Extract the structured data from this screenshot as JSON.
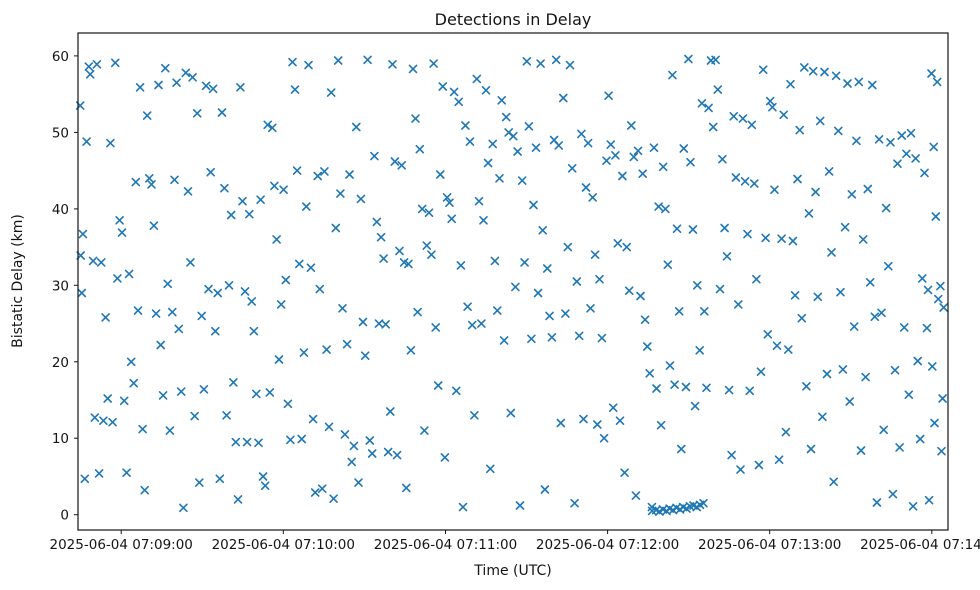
{
  "chart_data": {
    "type": "scatter",
    "title": "Detections in Delay",
    "xlabel": "Time (UTC)",
    "ylabel": "Bistatic Delay (km)",
    "marker": "x",
    "marker_color": "#1f77b4",
    "grid": false,
    "legend": "none",
    "x_tick_labels": [
      "2025-06-04 07:09:00",
      "2025-06-04 07:10:00",
      "2025-06-04 07:11:00",
      "2025-06-04 07:12:00",
      "2025-06-04 07:13:00",
      "2025-06-04 07:14:00"
    ],
    "x_tick_seconds": [
      0,
      60,
      120,
      180,
      240,
      300
    ],
    "xlim_seconds": [
      -16,
      306
    ],
    "y_ticks": [
      0,
      10,
      20,
      30,
      40,
      50,
      60
    ],
    "ylim": [
      -2,
      63
    ],
    "points": [
      [
        -15.2,
        53.5
      ],
      [
        -15.0,
        33.9
      ],
      [
        -14.6,
        29.0
      ],
      [
        -14.2,
        36.7
      ],
      [
        -13.5,
        4.7
      ],
      [
        -12.8,
        48.8
      ],
      [
        -12.0,
        58.6
      ],
      [
        -11.5,
        57.6
      ],
      [
        -10.4,
        33.2
      ],
      [
        -9.8,
        12.7
      ],
      [
        -9.0,
        58.9
      ],
      [
        -8.2,
        5.4
      ],
      [
        -7.4,
        33.0
      ],
      [
        -6.6,
        12.3
      ],
      [
        -5.8,
        25.8
      ],
      [
        -5.0,
        15.2
      ],
      [
        -4.0,
        48.6
      ],
      [
        -3.2,
        12.1
      ],
      [
        -2.2,
        59.1
      ],
      [
        -1.4,
        30.9
      ],
      [
        -0.6,
        38.5
      ],
      [
        0.3,
        36.9
      ],
      [
        1.1,
        14.9
      ],
      [
        2.0,
        5.5
      ],
      [
        2.9,
        31.5
      ],
      [
        3.7,
        20.0
      ],
      [
        4.6,
        17.2
      ],
      [
        5.4,
        43.5
      ],
      [
        6.2,
        26.7
      ],
      [
        7.0,
        55.9
      ],
      [
        7.9,
        11.2
      ],
      [
        8.7,
        3.2
      ],
      [
        9.6,
        52.2
      ],
      [
        10.4,
        44.0
      ],
      [
        11.2,
        43.2
      ],
      [
        12.1,
        37.8
      ],
      [
        12.9,
        26.3
      ],
      [
        13.8,
        56.2
      ],
      [
        14.6,
        22.2
      ],
      [
        15.5,
        15.6
      ],
      [
        16.3,
        58.4
      ],
      [
        17.2,
        30.2
      ],
      [
        18.0,
        11.0
      ],
      [
        18.9,
        26.5
      ],
      [
        19.7,
        43.8
      ],
      [
        20.5,
        56.5
      ],
      [
        21.3,
        24.3
      ],
      [
        22.2,
        16.1
      ],
      [
        23.0,
        0.9
      ],
      [
        23.9,
        57.8
      ],
      [
        24.7,
        42.3
      ],
      [
        25.6,
        33.0
      ],
      [
        26.4,
        57.2
      ],
      [
        27.2,
        12.9
      ],
      [
        28.1,
        52.5
      ],
      [
        28.9,
        4.2
      ],
      [
        29.8,
        26.0
      ],
      [
        30.6,
        16.4
      ],
      [
        31.4,
        56.1
      ],
      [
        32.3,
        29.5
      ],
      [
        33.1,
        44.8
      ],
      [
        34.0,
        55.7
      ],
      [
        34.8,
        24.0
      ],
      [
        35.7,
        29.0
      ],
      [
        36.5,
        4.7
      ],
      [
        37.3,
        52.6
      ],
      [
        38.2,
        42.7
      ],
      [
        39.0,
        13.0
      ],
      [
        39.9,
        30.0
      ],
      [
        40.7,
        39.2
      ],
      [
        41.5,
        17.3
      ],
      [
        42.4,
        9.5
      ],
      [
        43.2,
        2.0
      ],
      [
        44.1,
        55.9
      ],
      [
        44.9,
        41.0
      ],
      [
        45.8,
        29.2
      ],
      [
        46.6,
        9.5
      ],
      [
        47.4,
        39.3
      ],
      [
        48.3,
        27.9
      ],
      [
        49.1,
        24.0
      ],
      [
        50.0,
        15.8
      ],
      [
        50.8,
        9.4
      ],
      [
        51.6,
        41.2
      ],
      [
        52.5,
        5.0
      ],
      [
        53.3,
        3.8
      ],
      [
        54.2,
        51.0
      ],
      [
        55.0,
        16.0
      ],
      [
        55.9,
        50.6
      ],
      [
        56.7,
        43.0
      ],
      [
        57.5,
        36.0
      ],
      [
        58.4,
        20.3
      ],
      [
        59.2,
        27.5
      ],
      [
        60.1,
        42.5
      ],
      [
        60.9,
        30.7
      ],
      [
        61.7,
        14.5
      ],
      [
        62.6,
        9.8
      ],
      [
        63.4,
        59.2
      ],
      [
        64.3,
        55.6
      ],
      [
        65.1,
        45.0
      ],
      [
        65.9,
        32.8
      ],
      [
        66.8,
        9.9
      ],
      [
        67.6,
        21.2
      ],
      [
        68.5,
        40.3
      ],
      [
        69.3,
        58.8
      ],
      [
        70.2,
        32.3
      ],
      [
        71.0,
        12.5
      ],
      [
        71.8,
        2.9
      ],
      [
        72.7,
        44.3
      ],
      [
        73.5,
        29.5
      ],
      [
        74.4,
        3.4
      ],
      [
        75.2,
        44.9
      ],
      [
        76.0,
        21.6
      ],
      [
        76.9,
        11.5
      ],
      [
        77.7,
        55.2
      ],
      [
        78.6,
        2.1
      ],
      [
        79.4,
        37.5
      ],
      [
        80.3,
        59.4
      ],
      [
        81.1,
        42.0
      ],
      [
        81.9,
        27.0
      ],
      [
        82.8,
        10.5
      ],
      [
        83.6,
        22.3
      ],
      [
        84.5,
        44.5
      ],
      [
        85.3,
        6.9
      ],
      [
        86.1,
        9.0
      ],
      [
        87.0,
        50.7
      ],
      [
        87.8,
        4.2
      ],
      [
        88.7,
        41.3
      ],
      [
        89.5,
        25.2
      ],
      [
        90.3,
        20.8
      ],
      [
        91.2,
        59.5
      ],
      [
        92.0,
        9.7
      ],
      [
        92.9,
        8.0
      ],
      [
        93.7,
        46.9
      ],
      [
        94.6,
        38.3
      ],
      [
        95.4,
        25.0
      ],
      [
        96.2,
        36.3
      ],
      [
        97.1,
        33.5
      ],
      [
        97.9,
        24.9
      ],
      [
        98.8,
        8.2
      ],
      [
        99.6,
        13.5
      ],
      [
        100.4,
        58.9
      ],
      [
        101.3,
        46.2
      ],
      [
        102.1,
        7.8
      ],
      [
        103.0,
        34.5
      ],
      [
        103.8,
        45.7
      ],
      [
        104.7,
        33.0
      ],
      [
        105.5,
        3.5
      ],
      [
        106.3,
        32.8
      ],
      [
        107.2,
        21.5
      ],
      [
        108.0,
        58.3
      ],
      [
        108.9,
        51.8
      ],
      [
        109.7,
        26.5
      ],
      [
        110.5,
        47.8
      ],
      [
        111.4,
        40.0
      ],
      [
        112.2,
        11.0
      ],
      [
        113.1,
        35.2
      ],
      [
        113.9,
        39.5
      ],
      [
        114.8,
        34.0
      ],
      [
        115.6,
        59.0
      ],
      [
        116.4,
        24.5
      ],
      [
        117.3,
        16.9
      ],
      [
        118.1,
        44.5
      ],
      [
        119.0,
        56.0
      ],
      [
        119.8,
        7.5
      ],
      [
        120.6,
        41.5
      ],
      [
        121.5,
        40.8
      ],
      [
        122.3,
        38.7
      ],
      [
        123.2,
        55.3
      ],
      [
        124.0,
        16.2
      ],
      [
        124.9,
        54.0
      ],
      [
        125.7,
        32.6
      ],
      [
        126.5,
        1.0
      ],
      [
        127.4,
        50.9
      ],
      [
        128.2,
        27.2
      ],
      [
        129.1,
        48.8
      ],
      [
        129.9,
        24.8
      ],
      [
        130.7,
        13.0
      ],
      [
        131.6,
        57.0
      ],
      [
        132.4,
        41.0
      ],
      [
        133.3,
        25.0
      ],
      [
        134.1,
        38.5
      ],
      [
        135.0,
        55.5
      ],
      [
        135.8,
        46.0
      ],
      [
        136.6,
        6.0
      ],
      [
        137.5,
        48.5
      ],
      [
        138.3,
        33.2
      ],
      [
        139.2,
        26.7
      ],
      [
        140.0,
        44.0
      ],
      [
        140.8,
        54.2
      ],
      [
        141.7,
        22.8
      ],
      [
        142.5,
        52.0
      ],
      [
        143.4,
        50.0
      ],
      [
        144.2,
        13.3
      ],
      [
        145.1,
        49.5
      ],
      [
        145.9,
        29.8
      ],
      [
        146.7,
        47.5
      ],
      [
        147.6,
        1.2
      ],
      [
        148.4,
        43.7
      ],
      [
        149.3,
        33.0
      ],
      [
        150.1,
        59.3
      ],
      [
        150.9,
        50.8
      ],
      [
        151.8,
        23.0
      ],
      [
        152.6,
        40.5
      ],
      [
        153.5,
        48.0
      ],
      [
        154.3,
        29.0
      ],
      [
        155.2,
        59.0
      ],
      [
        156.0,
        37.2
      ],
      [
        156.8,
        3.3
      ],
      [
        157.7,
        32.2
      ],
      [
        158.5,
        26.0
      ],
      [
        159.4,
        23.2
      ],
      [
        160.2,
        49.0
      ],
      [
        161.0,
        59.5
      ],
      [
        161.9,
        48.3
      ],
      [
        162.7,
        12.0
      ],
      [
        163.6,
        54.5
      ],
      [
        164.4,
        26.3
      ],
      [
        165.3,
        35.0
      ],
      [
        166.1,
        58.8
      ],
      [
        166.9,
        45.3
      ],
      [
        167.8,
        1.5
      ],
      [
        168.6,
        30.5
      ],
      [
        169.5,
        23.4
      ],
      [
        170.3,
        49.8
      ],
      [
        171.1,
        12.5
      ],
      [
        172.0,
        42.8
      ],
      [
        172.8,
        48.6
      ],
      [
        173.7,
        27.0
      ],
      [
        174.5,
        41.5
      ],
      [
        175.4,
        34.0
      ],
      [
        176.2,
        11.8
      ],
      [
        177.0,
        30.8
      ],
      [
        177.9,
        23.1
      ],
      [
        178.7,
        10.0
      ],
      [
        179.6,
        46.3
      ],
      [
        180.4,
        54.8
      ],
      [
        181.2,
        48.4
      ],
      [
        182.1,
        14.0
      ],
      [
        182.9,
        47.0
      ],
      [
        183.8,
        35.5
      ],
      [
        184.6,
        12.3
      ],
      [
        185.5,
        44.3
      ],
      [
        186.3,
        5.5
      ],
      [
        187.1,
        35.0
      ],
      [
        188.0,
        29.3
      ],
      [
        188.8,
        50.9
      ],
      [
        189.7,
        46.8
      ],
      [
        190.5,
        2.5
      ],
      [
        191.3,
        47.6
      ],
      [
        192.2,
        28.6
      ],
      [
        193.0,
        44.6
      ],
      [
        193.9,
        25.5
      ],
      [
        194.7,
        22.0
      ],
      [
        195.6,
        18.5
      ],
      [
        196.4,
        1.0
      ],
      [
        197.2,
        48.0
      ],
      [
        198.1,
        16.5
      ],
      [
        198.9,
        40.3
      ],
      [
        199.8,
        11.7
      ],
      [
        200.6,
        45.5
      ],
      [
        201.4,
        40.0
      ],
      [
        202.3,
        32.7
      ],
      [
        203.1,
        19.5
      ],
      [
        204.0,
        57.5
      ],
      [
        204.8,
        17.0
      ],
      [
        205.7,
        37.4
      ],
      [
        206.5,
        26.6
      ],
      [
        207.3,
        8.6
      ],
      [
        208.2,
        47.9
      ],
      [
        209.0,
        16.7
      ],
      [
        209.9,
        59.6
      ],
      [
        210.7,
        46.1
      ],
      [
        211.6,
        37.3
      ],
      [
        212.4,
        14.2
      ],
      [
        213.2,
        30.0
      ],
      [
        214.1,
        21.5
      ],
      [
        214.9,
        53.8
      ],
      [
        215.8,
        26.6
      ],
      [
        216.6,
        16.6
      ],
      [
        217.4,
        53.2
      ],
      [
        218.3,
        59.4
      ],
      [
        219.1,
        50.7
      ],
      [
        196.5,
        0.5
      ],
      [
        198.0,
        0.6
      ],
      [
        199.2,
        0.4
      ],
      [
        200.5,
        0.7
      ],
      [
        201.8,
        0.5
      ],
      [
        203.0,
        0.8
      ],
      [
        204.2,
        0.6
      ],
      [
        205.5,
        0.9
      ],
      [
        206.8,
        0.7
      ],
      [
        208.0,
        1.0
      ],
      [
        209.2,
        0.8
      ],
      [
        210.5,
        1.1
      ],
      [
        211.8,
        1.2
      ],
      [
        213.0,
        1.0
      ],
      [
        214.2,
        1.3
      ],
      [
        215.5,
        1.5
      ],
      [
        220.0,
        59.5
      ],
      [
        220.8,
        55.6
      ],
      [
        221.6,
        29.5
      ],
      [
        222.5,
        46.5
      ],
      [
        223.3,
        37.5
      ],
      [
        224.2,
        33.8
      ],
      [
        225.0,
        16.3
      ],
      [
        225.9,
        7.8
      ],
      [
        226.7,
        52.1
      ],
      [
        227.5,
        44.1
      ],
      [
        228.4,
        27.5
      ],
      [
        229.2,
        5.9
      ],
      [
        230.1,
        51.8
      ],
      [
        230.9,
        43.6
      ],
      [
        231.8,
        36.7
      ],
      [
        232.6,
        16.2
      ],
      [
        233.4,
        51.0
      ],
      [
        234.3,
        43.3
      ],
      [
        235.1,
        30.8
      ],
      [
        236.0,
        6.5
      ],
      [
        236.8,
        18.7
      ],
      [
        237.6,
        58.2
      ],
      [
        238.5,
        36.2
      ],
      [
        239.3,
        23.6
      ],
      [
        240.2,
        54.1
      ],
      [
        241.0,
        53.3
      ],
      [
        241.8,
        42.5
      ],
      [
        242.7,
        22.1
      ],
      [
        243.5,
        7.2
      ],
      [
        244.4,
        36.1
      ],
      [
        245.2,
        52.3
      ],
      [
        246.0,
        10.8
      ],
      [
        246.9,
        21.6
      ],
      [
        247.7,
        56.3
      ],
      [
        248.6,
        35.8
      ],
      [
        249.4,
        28.7
      ],
      [
        250.3,
        43.9
      ],
      [
        251.1,
        50.3
      ],
      [
        251.9,
        25.7
      ],
      [
        252.8,
        58.5
      ],
      [
        253.6,
        16.8
      ],
      [
        254.5,
        39.4
      ],
      [
        255.3,
        8.6
      ],
      [
        256.1,
        58.0
      ],
      [
        257.0,
        42.2
      ],
      [
        257.8,
        28.5
      ],
      [
        258.7,
        51.5
      ],
      [
        259.5,
        12.8
      ],
      [
        260.3,
        57.9
      ],
      [
        261.2,
        18.4
      ],
      [
        262.0,
        44.9
      ],
      [
        262.9,
        34.3
      ],
      [
        263.7,
        4.3
      ],
      [
        264.6,
        57.4
      ],
      [
        265.4,
        50.2
      ],
      [
        266.2,
        29.1
      ],
      [
        267.1,
        19.0
      ],
      [
        267.9,
        37.6
      ],
      [
        268.8,
        56.4
      ],
      [
        269.6,
        14.8
      ],
      [
        270.4,
        41.9
      ],
      [
        271.3,
        24.6
      ],
      [
        272.1,
        48.9
      ],
      [
        273.0,
        56.6
      ],
      [
        273.8,
        8.4
      ],
      [
        274.6,
        36.0
      ],
      [
        275.5,
        18.0
      ],
      [
        276.3,
        42.6
      ],
      [
        277.2,
        30.4
      ],
      [
        278.0,
        56.2
      ],
      [
        278.9,
        25.9
      ],
      [
        279.7,
        1.6
      ],
      [
        280.5,
        49.1
      ],
      [
        281.4,
        26.4
      ],
      [
        282.2,
        11.1
      ],
      [
        283.1,
        40.1
      ],
      [
        283.9,
        32.5
      ],
      [
        284.7,
        48.7
      ],
      [
        285.6,
        2.7
      ],
      [
        286.4,
        18.9
      ],
      [
        287.3,
        45.9
      ],
      [
        288.1,
        8.8
      ],
      [
        288.9,
        49.6
      ],
      [
        289.8,
        24.5
      ],
      [
        290.6,
        47.2
      ],
      [
        291.5,
        15.7
      ],
      [
        292.3,
        49.9
      ],
      [
        293.1,
        1.1
      ],
      [
        294.0,
        46.6
      ],
      [
        294.8,
        20.1
      ],
      [
        295.7,
        9.9
      ],
      [
        296.5,
        30.9
      ],
      [
        297.3,
        44.7
      ],
      [
        298.2,
        24.4
      ],
      [
        298.6,
        29.4
      ],
      [
        299.0,
        1.9
      ],
      [
        299.9,
        57.7
      ],
      [
        300.2,
        19.4
      ],
      [
        300.7,
        48.1
      ],
      [
        301.0,
        12.0
      ],
      [
        301.5,
        39.0
      ],
      [
        302.0,
        56.6
      ],
      [
        302.4,
        28.2
      ],
      [
        303.2,
        29.9
      ],
      [
        303.6,
        8.3
      ],
      [
        304.0,
        15.2
      ],
      [
        304.4,
        27.1
      ]
    ]
  }
}
